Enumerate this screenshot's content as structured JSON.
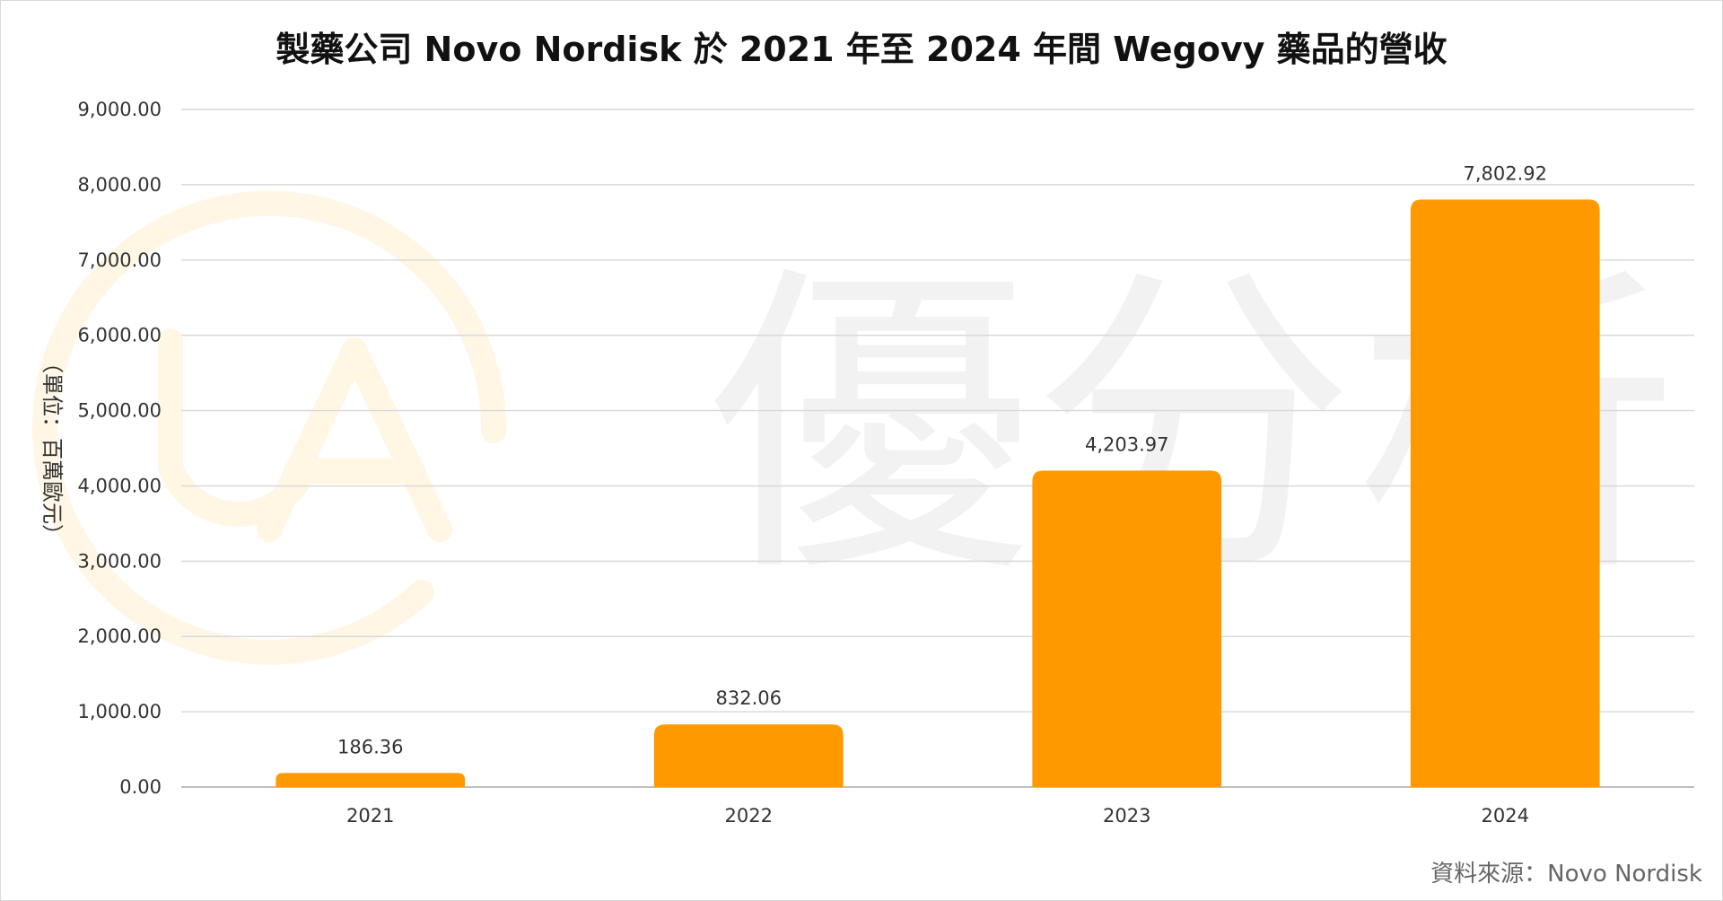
{
  "chart_data": {
    "type": "bar",
    "title": "製藥公司 Novo Nordisk 於 2021 年至 2024 年間 Wegovy 藥品的營收",
    "ylabel": "（單位：百萬歐元）",
    "xlabel": "",
    "categories": [
      "2021",
      "2022",
      "2023",
      "2024"
    ],
    "values": [
      186.36,
      832.06,
      4203.97,
      7802.92
    ],
    "data_labels": [
      "186.36",
      "832.06",
      "4,203.97",
      "7,802.92"
    ],
    "ylim": [
      0,
      9000
    ],
    "yticks": [
      0,
      1000,
      2000,
      3000,
      4000,
      5000,
      6000,
      7000,
      8000,
      9000
    ],
    "ytick_labels": [
      "0.00",
      "1,000.00",
      "2,000.00",
      "3,000.00",
      "4,000.00",
      "5,000.00",
      "6,000.00",
      "7,000.00",
      "8,000.00",
      "9,000.00"
    ],
    "grid": true,
    "legend": "none",
    "bar_color": "#FF9900",
    "source": "資料來源：Novo Nordisk",
    "watermark_text": "優分析"
  }
}
